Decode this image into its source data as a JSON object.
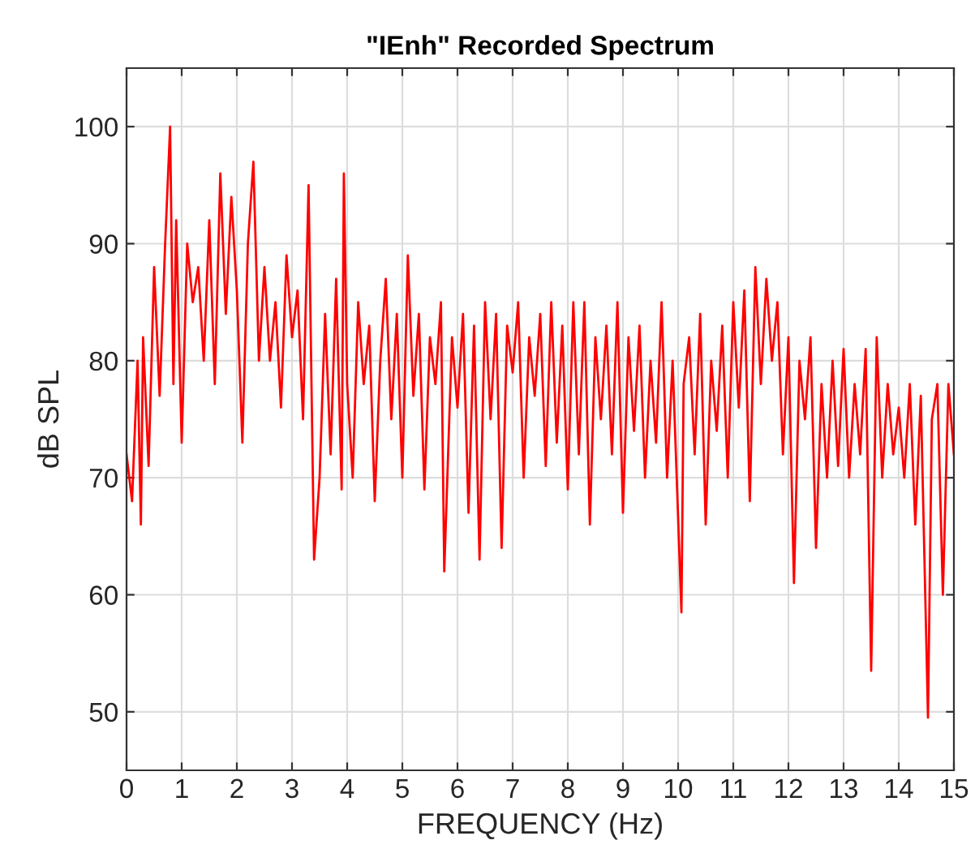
{
  "chart_data": {
    "type": "line",
    "title": "\"IEnh\" Recorded Spectrum",
    "xlabel": "FREQUENCY (Hz)",
    "ylabel": "dB SPL",
    "xlim": [
      0,
      15
    ],
    "xticks": [
      0,
      1,
      2,
      3,
      4,
      5,
      6,
      7,
      8,
      9,
      10,
      11,
      12,
      13,
      14,
      15
    ],
    "ylim": [
      45,
      105
    ],
    "yticks": [
      50,
      60,
      70,
      80,
      90,
      100
    ],
    "grid": true,
    "marker": "none",
    "line_style": "solid",
    "series": [
      {
        "color": "#ff0000",
        "x": [
          0,
          0.1,
          0.2,
          0.26,
          0.3,
          0.4,
          0.5,
          0.6,
          0.7,
          0.79,
          0.85,
          0.9,
          1.0,
          1.1,
          1.2,
          1.3,
          1.4,
          1.5,
          1.6,
          1.7,
          1.8,
          1.9,
          2.0,
          2.1,
          2.2,
          2.3,
          2.4,
          2.5,
          2.6,
          2.7,
          2.8,
          2.9,
          3.0,
          3.1,
          3.2,
          3.3,
          3.4,
          3.5,
          3.6,
          3.7,
          3.8,
          3.9,
          3.94,
          4.0,
          4.1,
          4.2,
          4.3,
          4.4,
          4.5,
          4.6,
          4.7,
          4.8,
          4.9,
          5.0,
          5.1,
          5.2,
          5.3,
          5.4,
          5.5,
          5.6,
          5.7,
          5.76,
          5.9,
          6.0,
          6.1,
          6.2,
          6.3,
          6.4,
          6.5,
          6.6,
          6.7,
          6.8,
          6.9,
          7.0,
          7.1,
          7.2,
          7.3,
          7.4,
          7.5,
          7.6,
          7.7,
          7.8,
          7.9,
          8.0,
          8.1,
          8.2,
          8.3,
          8.4,
          8.5,
          8.6,
          8.7,
          8.8,
          8.9,
          9.0,
          9.1,
          9.2,
          9.3,
          9.4,
          9.5,
          9.6,
          9.7,
          9.8,
          9.9,
          10.06,
          10.1,
          10.2,
          10.3,
          10.4,
          10.5,
          10.6,
          10.7,
          10.8,
          10.9,
          11.0,
          11.1,
          11.2,
          11.3,
          11.4,
          11.5,
          11.6,
          11.7,
          11.8,
          11.9,
          12.0,
          12.1,
          12.2,
          12.3,
          12.4,
          12.5,
          12.6,
          12.7,
          12.8,
          12.9,
          13.0,
          13.1,
          13.2,
          13.3,
          13.4,
          13.5,
          13.6,
          13.7,
          13.8,
          13.9,
          14.0,
          14.1,
          14.2,
          14.3,
          14.4,
          14.53,
          14.6,
          14.7,
          14.8,
          14.9,
          15.0
        ],
        "values": [
          72,
          68,
          80,
          66,
          82,
          71,
          88,
          77,
          90,
          100,
          78,
          92,
          73,
          90,
          85,
          88,
          80,
          92,
          78,
          96,
          84,
          94,
          86,
          73,
          90,
          97,
          80,
          88,
          80,
          85,
          76,
          89,
          82,
          86,
          75,
          95,
          63,
          70,
          84,
          72,
          87,
          69,
          96,
          78,
          70,
          85,
          78,
          83,
          68,
          80,
          87,
          75,
          84,
          70,
          89,
          77,
          84,
          69,
          82,
          78,
          85,
          62,
          82,
          76,
          84,
          67,
          83,
          63,
          85,
          75,
          84,
          64,
          83,
          79,
          85,
          70,
          82,
          77,
          84,
          71,
          85,
          73,
          83,
          69,
          85,
          72,
          85,
          66,
          82,
          75,
          83,
          72,
          85,
          67,
          82,
          74,
          83,
          70,
          80,
          73,
          85,
          70,
          80,
          58.5,
          78,
          82,
          72,
          84,
          66,
          80,
          74,
          83,
          70,
          85,
          76,
          86,
          68,
          88,
          78,
          87,
          80,
          85,
          72,
          82,
          61,
          80,
          75,
          82,
          64,
          78,
          70,
          80,
          71,
          81,
          70,
          78,
          72,
          81,
          53.5,
          82,
          70,
          78,
          72,
          76,
          70,
          78,
          66,
          77,
          49.5,
          75,
          78,
          60,
          78,
          72
        ]
      }
    ]
  }
}
